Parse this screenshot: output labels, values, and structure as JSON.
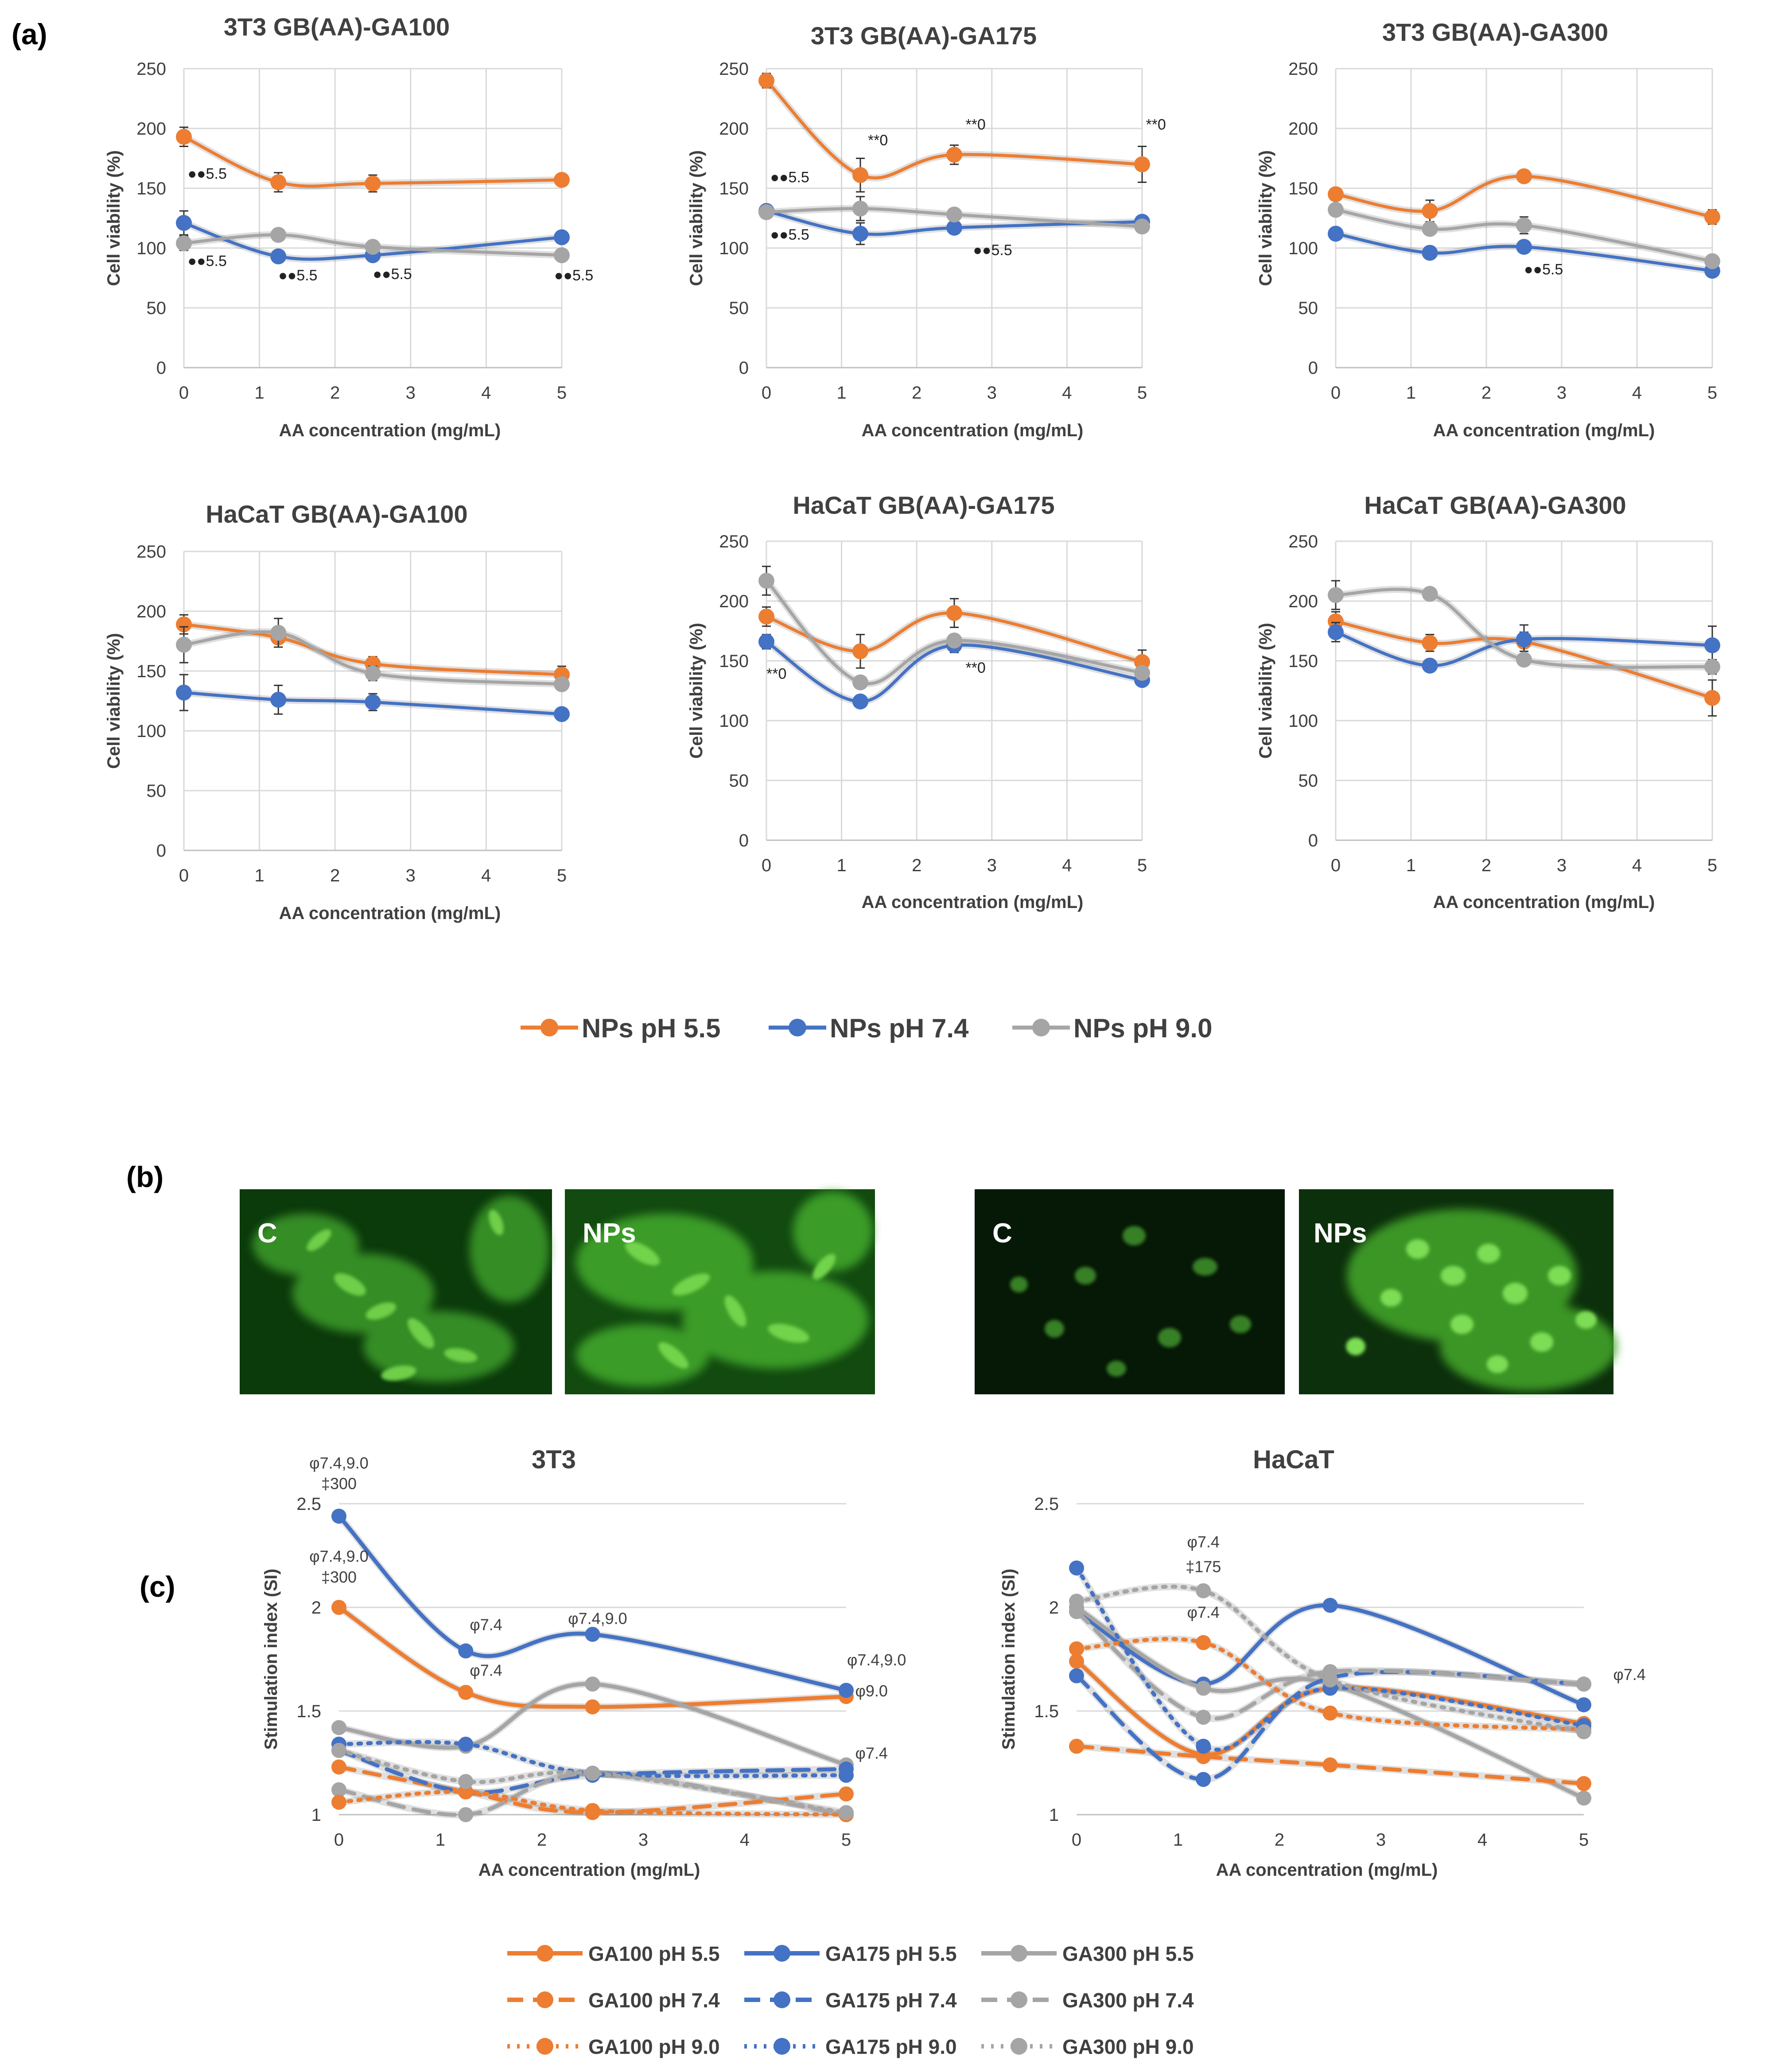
{
  "figure": {
    "panel_a_label": "(a)",
    "panel_b_label": "(b)",
    "panel_c_label": "(c)"
  },
  "chart_data": [
    {
      "type": "line",
      "title": "3T3 GB(AA)-GA100",
      "xlabel": "AA concentration (mg/mL)",
      "ylabel": "Cell viability (%)",
      "xlim": [
        0,
        5
      ],
      "ylim": [
        0,
        250
      ],
      "xticks": [
        0,
        1,
        2,
        3,
        4,
        5
      ],
      "yticks": [
        0,
        50,
        100,
        150,
        200,
        250
      ],
      "x": [
        0,
        1.25,
        2.5,
        5
      ],
      "series": [
        {
          "name": "NPs pH 5.5",
          "values": [
            193,
            155,
            154,
            157
          ],
          "errors": [
            8,
            8,
            7,
            4
          ]
        },
        {
          "name": "NPs pH 7.4",
          "values": [
            121,
            93,
            94,
            109
          ],
          "errors": [
            10,
            4,
            4,
            4
          ]
        },
        {
          "name": "NPs pH 9.0",
          "values": [
            104,
            111,
            101,
            94
          ],
          "errors": [
            6,
            3,
            3,
            3
          ]
        }
      ],
      "annotations": [
        {
          "text": "●●5.5",
          "x": 0.05,
          "y": 158
        },
        {
          "text": "●●5.5",
          "x": 0.05,
          "y": 85
        },
        {
          "text": "●●5.5",
          "x": 1.25,
          "y": 73
        },
        {
          "text": "●●5.5",
          "x": 2.5,
          "y": 74
        },
        {
          "text": "●●5.5",
          "x": 4.9,
          "y": 73
        }
      ]
    },
    {
      "type": "line",
      "title": "3T3 GB(AA)-GA175",
      "xlabel": "AA concentration (mg/mL)",
      "ylabel": "Cell viability (%)",
      "xlim": [
        0,
        5
      ],
      "ylim": [
        0,
        250
      ],
      "xticks": [
        0,
        1,
        2,
        3,
        4,
        5
      ],
      "yticks": [
        0,
        50,
        100,
        150,
        200,
        250
      ],
      "x": [
        0,
        1.25,
        2.5,
        5
      ],
      "series": [
        {
          "name": "NPs pH 5.5",
          "values": [
            240,
            161,
            178,
            170
          ],
          "errors": [
            6,
            14,
            8,
            15
          ]
        },
        {
          "name": "NPs pH 7.4",
          "values": [
            131,
            112,
            117,
            122
          ],
          "errors": [
            5,
            9,
            5,
            4
          ]
        },
        {
          "name": "NPs pH 9.0",
          "values": [
            130,
            133,
            128,
            118
          ],
          "errors": [
            4,
            10,
            4,
            3
          ]
        }
      ],
      "annotations": [
        {
          "text": "●●5.5",
          "x": 0.05,
          "y": 155
        },
        {
          "text": "●●5.5",
          "x": 0.05,
          "y": 107
        },
        {
          "text": "**0",
          "x": 1.35,
          "y": 186
        },
        {
          "text": "**0",
          "x": 2.65,
          "y": 199
        },
        {
          "text": "**0",
          "x": 5.05,
          "y": 199
        },
        {
          "text": "●●5.5",
          "x": 2.75,
          "y": 94
        }
      ]
    },
    {
      "type": "line",
      "title": "3T3 GB(AA)-GA300",
      "xlabel": "AA concentration (mg/mL)",
      "ylabel": "Cell viability (%)",
      "xlim": [
        0,
        5
      ],
      "ylim": [
        0,
        250
      ],
      "xticks": [
        0,
        1,
        2,
        3,
        4,
        5
      ],
      "yticks": [
        0,
        50,
        100,
        150,
        200,
        250
      ],
      "x": [
        0,
        1.25,
        2.5,
        5
      ],
      "series": [
        {
          "name": "NPs pH 5.5",
          "values": [
            145,
            131,
            160,
            126
          ],
          "errors": [
            4,
            9,
            4,
            6
          ]
        },
        {
          "name": "NPs pH 7.4",
          "values": [
            112,
            96,
            101,
            81
          ],
          "errors": [
            4,
            3,
            5,
            3
          ]
        },
        {
          "name": "NPs pH 9.0",
          "values": [
            132,
            116,
            119,
            89
          ],
          "errors": [
            5,
            4,
            7,
            3
          ]
        }
      ],
      "annotations": [
        {
          "text": "●●5.5",
          "x": 2.5,
          "y": 78
        }
      ]
    },
    {
      "type": "line",
      "title": "HaCaT GB(AA)-GA100",
      "xlabel": "AA concentration (mg/mL)",
      "ylabel": "Cell viability (%)",
      "xlim": [
        0,
        5
      ],
      "ylim": [
        0,
        250
      ],
      "xticks": [
        0,
        1,
        2,
        3,
        4,
        5
      ],
      "yticks": [
        0,
        50,
        100,
        150,
        200,
        250
      ],
      "x": [
        0,
        1.25,
        2.5,
        5
      ],
      "series": [
        {
          "name": "NPs pH 5.5",
          "values": [
            189,
            178,
            156,
            147
          ],
          "errors": [
            8,
            8,
            6,
            7
          ]
        },
        {
          "name": "NPs pH 7.4",
          "values": [
            132,
            126,
            124,
            114
          ],
          "errors": [
            15,
            12,
            7,
            5
          ]
        },
        {
          "name": "NPs pH 9.0",
          "values": [
            172,
            182,
            148,
            139
          ],
          "errors": [
            15,
            12,
            6,
            5
          ]
        }
      ],
      "annotations": []
    },
    {
      "type": "line",
      "title": "HaCaT GB(AA)-GA175",
      "xlabel": "AA concentration (mg/mL)",
      "ylabel": "Cell viability (%)",
      "xlim": [
        0,
        5
      ],
      "ylim": [
        0,
        250
      ],
      "xticks": [
        0,
        1,
        2,
        3,
        4,
        5
      ],
      "yticks": [
        0,
        50,
        100,
        150,
        200,
        250
      ],
      "x": [
        0,
        1.25,
        2.5,
        5
      ],
      "series": [
        {
          "name": "NPs pH 5.5",
          "values": [
            187,
            158,
            190,
            149
          ],
          "errors": [
            8,
            14,
            12,
            10
          ]
        },
        {
          "name": "NPs pH 7.4",
          "values": [
            166,
            116,
            163,
            134
          ],
          "errors": [
            6,
            4,
            6,
            4
          ]
        },
        {
          "name": "NPs pH 9.0",
          "values": [
            217,
            132,
            167,
            140
          ],
          "errors": [
            12,
            5,
            5,
            5
          ]
        }
      ],
      "annotations": [
        {
          "text": "**0",
          "x": 0.0,
          "y": 135
        },
        {
          "text": "**0",
          "x": 2.65,
          "y": 140
        }
      ]
    },
    {
      "type": "line",
      "title": "HaCaT GB(AA)-GA300",
      "xlabel": "AA concentration (mg/mL)",
      "ylabel": "Cell viability (%)",
      "xlim": [
        0,
        5
      ],
      "ylim": [
        0,
        250
      ],
      "xticks": [
        0,
        1,
        2,
        3,
        4,
        5
      ],
      "yticks": [
        0,
        50,
        100,
        150,
        200,
        250
      ],
      "x": [
        0,
        1.25,
        2.5,
        5
      ],
      "series": [
        {
          "name": "NPs pH 5.5",
          "values": [
            183,
            165,
            166,
            119
          ],
          "errors": [
            8,
            7,
            8,
            15
          ]
        },
        {
          "name": "NPs pH 7.4",
          "values": [
            174,
            146,
            168,
            163
          ],
          "errors": [
            8,
            5,
            12,
            16
          ]
        },
        {
          "name": "NPs pH 9.0",
          "values": [
            205,
            206,
            151,
            145
          ],
          "errors": [
            12,
            4,
            5,
            6
          ]
        }
      ],
      "annotations": []
    },
    {
      "type": "line",
      "title": "3T3",
      "xlabel": "AA concentration (mg/mL)",
      "ylabel": "Stimulation index (SI)",
      "xlim": [
        0,
        5
      ],
      "ylim": [
        1,
        2.5
      ],
      "xticks": [
        0,
        1,
        2,
        3,
        4,
        5
      ],
      "yticks": [
        1,
        1.5,
        2,
        2.5
      ],
      "x": [
        0,
        1.25,
        2.5,
        5
      ],
      "series": [
        {
          "name": "GA100 pH 5.5",
          "values": [
            2.0,
            1.59,
            1.52,
            1.57
          ]
        },
        {
          "name": "GA175 pH 5.5",
          "values": [
            2.44,
            1.79,
            1.87,
            1.6
          ]
        },
        {
          "name": "GA300 pH 5.5",
          "values": [
            1.42,
            1.33,
            1.63,
            1.24
          ]
        },
        {
          "name": "GA100 pH 7.4",
          "values": [
            1.23,
            1.11,
            1.01,
            1.1
          ]
        },
        {
          "name": "GA175 pH 7.4",
          "values": [
            1.31,
            1.11,
            1.19,
            1.22
          ]
        },
        {
          "name": "GA300 pH 7.4",
          "values": [
            1.12,
            1.0,
            1.2,
            1.0
          ]
        },
        {
          "name": "GA100 pH 9.0",
          "values": [
            1.06,
            1.11,
            1.02,
            1.0
          ]
        },
        {
          "name": "GA175 pH 9.0",
          "values": [
            1.34,
            1.34,
            1.2,
            1.19
          ]
        },
        {
          "name": "GA300 pH 9.0",
          "values": [
            1.31,
            1.16,
            1.2,
            1.01
          ]
        }
      ],
      "annotations": [
        {
          "text": "φ7.4,9.0",
          "x": 0.0,
          "y": 2.67
        },
        {
          "text": "‡300",
          "x": 0.0,
          "y": 2.57
        },
        {
          "text": "φ7.4,9.0",
          "x": 0.0,
          "y": 2.22
        },
        {
          "text": "‡300",
          "x": 0.0,
          "y": 2.12
        },
        {
          "text": "φ7.4",
          "x": 1.45,
          "y": 1.89
        },
        {
          "text": "φ7.4",
          "x": 1.45,
          "y": 1.67
        },
        {
          "text": "φ7.4,9.0",
          "x": 2.55,
          "y": 1.92
        },
        {
          "text": "φ7.4,9.0",
          "x": 5.3,
          "y": 1.72
        },
        {
          "text": "φ9.0",
          "x": 5.25,
          "y": 1.57
        },
        {
          "text": "φ7.4",
          "x": 5.25,
          "y": 1.27
        }
      ]
    },
    {
      "type": "line",
      "title": "HaCaT",
      "xlabel": "AA concentration (mg/mL)",
      "ylabel": "Stimulation index (SI)",
      "xlim": [
        0,
        5
      ],
      "ylim": [
        1,
        2.5
      ],
      "xticks": [
        0,
        1,
        2,
        3,
        4,
        5
      ],
      "yticks": [
        1,
        1.5,
        2,
        2.5
      ],
      "x": [
        0,
        1.25,
        2.5,
        5
      ],
      "series": [
        {
          "name": "GA100 pH 5.5",
          "values": [
            1.74,
            1.29,
            1.61,
            1.44
          ]
        },
        {
          "name": "GA175 pH 5.5",
          "values": [
            1.98,
            1.63,
            2.01,
            1.53
          ]
        },
        {
          "name": "GA300 pH 5.5",
          "values": [
            2.0,
            1.61,
            1.63,
            1.08
          ]
        },
        {
          "name": "GA100 pH 7.4",
          "values": [
            1.33,
            1.28,
            1.24,
            1.15
          ]
        },
        {
          "name": "GA175 pH 7.4",
          "values": [
            1.67,
            1.17,
            1.66,
            1.63
          ]
        },
        {
          "name": "GA300 pH 7.4",
          "values": [
            1.98,
            1.47,
            1.69,
            1.63
          ]
        },
        {
          "name": "GA100 pH 9.0",
          "values": [
            1.8,
            1.83,
            1.49,
            1.41
          ]
        },
        {
          "name": "GA175 pH 9.0",
          "values": [
            2.19,
            1.33,
            1.61,
            1.43
          ]
        },
        {
          "name": "GA300 pH 9.0",
          "values": [
            2.03,
            2.08,
            1.65,
            1.4
          ]
        }
      ],
      "annotations": [
        {
          "text": "φ7.4",
          "x": 1.25,
          "y": 2.29
        },
        {
          "text": "‡175",
          "x": 1.25,
          "y": 2.17
        },
        {
          "text": "φ7.4",
          "x": 1.25,
          "y": 1.95
        },
        {
          "text": "φ7.4",
          "x": 5.45,
          "y": 1.65
        }
      ]
    }
  ],
  "legend_a": {
    "items": [
      {
        "label": "NPs pH 5.5",
        "color": "#ED7D31"
      },
      {
        "label": "NPs pH 7.4",
        "color": "#4472C4"
      },
      {
        "label": "NPs pH 9.0",
        "color": "#A5A5A5"
      }
    ]
  },
  "legend_c": {
    "items": [
      {
        "label": "GA100 pH 5.5",
        "color": "#ED7D31",
        "dash": "solid"
      },
      {
        "label": "GA175 pH 5.5",
        "color": "#4472C4",
        "dash": "solid"
      },
      {
        "label": "GA300 pH 5.5",
        "color": "#A5A5A5",
        "dash": "solid"
      },
      {
        "label": "GA100 pH 7.4",
        "color": "#ED7D31",
        "dash": "dash"
      },
      {
        "label": "GA175 pH 7.4",
        "color": "#4472C4",
        "dash": "dash"
      },
      {
        "label": "GA300 pH 7.4",
        "color": "#A5A5A5",
        "dash": "dash"
      },
      {
        "label": "GA100  pH 9.0",
        "color": "#ED7D31",
        "dash": "dot"
      },
      {
        "label": "GA175 pH 9.0",
        "color": "#4472C4",
        "dash": "dot"
      },
      {
        "label": "GA300 pH 9.0",
        "color": "#A5A5A5",
        "dash": "dot"
      }
    ]
  },
  "micrographs": [
    {
      "label": "C"
    },
    {
      "label": "NPs"
    },
    {
      "label": "C"
    },
    {
      "label": "NPs"
    }
  ]
}
